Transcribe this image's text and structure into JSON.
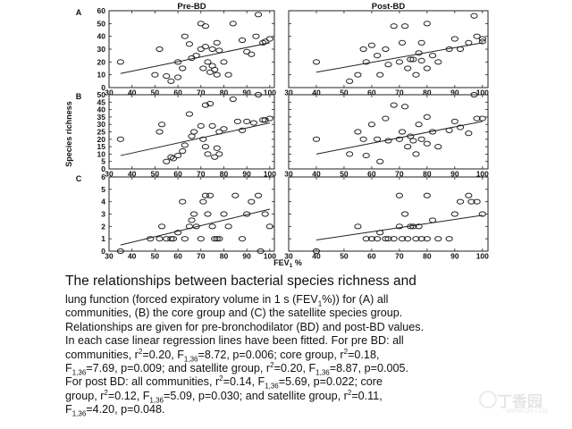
{
  "chart_data": {
    "type": "scatter",
    "columns": [
      "Pre-BD",
      "Post-BD"
    ],
    "ylabel": "Species richness",
    "xlabel_parts": [
      "FEV",
      "1",
      " %"
    ],
    "x_ticks": [
      30,
      40,
      50,
      60,
      70,
      80,
      90,
      100
    ],
    "xlim": [
      30,
      102
    ],
    "rows": [
      {
        "label": "A",
        "ylim": [
          0,
          60
        ],
        "y_ticks": [
          0,
          10,
          20,
          30,
          40,
          50,
          60
        ],
        "panels": [
          {
            "column": "Pre-BD",
            "line": [
              [
                35,
                11
              ],
              [
                100,
                35
              ]
            ],
            "points": [
              [
                35,
                20
              ],
              [
                50,
                10
              ],
              [
                52,
                30
              ],
              [
                55,
                9
              ],
              [
                57,
                5
              ],
              [
                60,
                8
              ],
              [
                60,
                20
              ],
              [
                62,
                15
              ],
              [
                63,
                40
              ],
              [
                65,
                34
              ],
              [
                66,
                23
              ],
              [
                68,
                25
              ],
              [
                70,
                30
              ],
              [
                70,
                50
              ],
              [
                71,
                15
              ],
              [
                72,
                48
              ],
              [
                72,
                32
              ],
              [
                73,
                20
              ],
              [
                74,
                12
              ],
              [
                75,
                30
              ],
              [
                75,
                17
              ],
              [
                76,
                14
              ],
              [
                77,
                10
              ],
              [
                77,
                35
              ],
              [
                78,
                29
              ],
              [
                80,
                20
              ],
              [
                82,
                10
              ],
              [
                84,
                50
              ],
              [
                88,
                37
              ],
              [
                90,
                28
              ],
              [
                92,
                26
              ],
              [
                94,
                40
              ],
              [
                95,
                57
              ],
              [
                97,
                35
              ],
              [
                98,
                36
              ],
              [
                100,
                38
              ]
            ]
          },
          {
            "column": "Post-BD",
            "line": [
              [
                40,
                12
              ],
              [
                100,
                35
              ]
            ],
            "points": [
              [
                40,
                20
              ],
              [
                52,
                5
              ],
              [
                55,
                10
              ],
              [
                57,
                30
              ],
              [
                58,
                20
              ],
              [
                60,
                33
              ],
              [
                62,
                25
              ],
              [
                63,
                10
              ],
              [
                65,
                30
              ],
              [
                66,
                18
              ],
              [
                68,
                48
              ],
              [
                70,
                20
              ],
              [
                71,
                35
              ],
              [
                72,
                48
              ],
              [
                73,
                15
              ],
              [
                74,
                22
              ],
              [
                75,
                22
              ],
              [
                76,
                10
              ],
              [
                77,
                27
              ],
              [
                78,
                21
              ],
              [
                78,
                35
              ],
              [
                80,
                50
              ],
              [
                80,
                15
              ],
              [
                82,
                25
              ],
              [
                84,
                20
              ],
              [
                88,
                30
              ],
              [
                90,
                38
              ],
              [
                92,
                30
              ],
              [
                95,
                35
              ],
              [
                97,
                56
              ],
              [
                98,
                40
              ],
              [
                100,
                38
              ],
              [
                100,
                36
              ]
            ]
          }
        ]
      },
      {
        "label": "B",
        "ylim": [
          0,
          50
        ],
        "y_ticks": [
          0,
          5,
          10,
          15,
          20,
          25,
          30,
          35,
          40,
          45,
          50
        ],
        "panels": [
          {
            "column": "Pre-BD",
            "line": [
              [
                35,
                9
              ],
              [
                100,
                31
              ]
            ],
            "points": [
              [
                35,
                20
              ],
              [
                52,
                25
              ],
              [
                53,
                30
              ],
              [
                55,
                5
              ],
              [
                57,
                8
              ],
              [
                58,
                7
              ],
              [
                60,
                9
              ],
              [
                62,
                12
              ],
              [
                63,
                16
              ],
              [
                65,
                37
              ],
              [
                66,
                22
              ],
              [
                67,
                25
              ],
              [
                70,
                29
              ],
              [
                71,
                20
              ],
              [
                72,
                43
              ],
              [
                72,
                15
              ],
              [
                73,
                10
              ],
              [
                74,
                44
              ],
              [
                75,
                29
              ],
              [
                76,
                8
              ],
              [
                77,
                14
              ],
              [
                78,
                25
              ],
              [
                78,
                10
              ],
              [
                80,
                27
              ],
              [
                84,
                47
              ],
              [
                86,
                32
              ],
              [
                88,
                26
              ],
              [
                90,
                32
              ],
              [
                93,
                31
              ],
              [
                95,
                50
              ],
              [
                97,
                33
              ],
              [
                98,
                33
              ],
              [
                100,
                34
              ]
            ]
          },
          {
            "column": "Post-BD",
            "line": [
              [
                40,
                10
              ],
              [
                100,
                32
              ]
            ],
            "points": [
              [
                40,
                20
              ],
              [
                52,
                10
              ],
              [
                55,
                25
              ],
              [
                57,
                20
              ],
              [
                58,
                9
              ],
              [
                60,
                30
              ],
              [
                62,
                20
              ],
              [
                63,
                5
              ],
              [
                65,
                34
              ],
              [
                66,
                19
              ],
              [
                68,
                43
              ],
              [
                70,
                20
              ],
              [
                71,
                25
              ],
              [
                72,
                42
              ],
              [
                73,
                15
              ],
              [
                74,
                22
              ],
              [
                75,
                19
              ],
              [
                76,
                10
              ],
              [
                77,
                30
              ],
              [
                78,
                20
              ],
              [
                80,
                35
              ],
              [
                80,
                17
              ],
              [
                82,
                25
              ],
              [
                84,
                15
              ],
              [
                88,
                26
              ],
              [
                90,
                32
              ],
              [
                92,
                28
              ],
              [
                95,
                24
              ],
              [
                97,
                50
              ],
              [
                98,
                34
              ],
              [
                100,
                34
              ]
            ]
          }
        ]
      },
      {
        "label": "C",
        "ylim": [
          0,
          6
        ],
        "y_ticks": [
          0,
          1,
          2,
          3,
          4,
          5,
          6
        ],
        "panels": [
          {
            "column": "Pre-BD",
            "line": [
              [
                35,
                0.5
              ],
              [
                100,
                3.4
              ]
            ],
            "points": [
              [
                35,
                0
              ],
              [
                48,
                1
              ],
              [
                52,
                1
              ],
              [
                53,
                2
              ],
              [
                55,
                1
              ],
              [
                57,
                1
              ],
              [
                58,
                1
              ],
              [
                60,
                1.5
              ],
              [
                62,
                4
              ],
              [
                63,
                1
              ],
              [
                65,
                2
              ],
              [
                66,
                2.5
              ],
              [
                67,
                3
              ],
              [
                68,
                2
              ],
              [
                70,
                1
              ],
              [
                71,
                4
              ],
              [
                72,
                4.5
              ],
              [
                73,
                3
              ],
              [
                74,
                4.5
              ],
              [
                75,
                2
              ],
              [
                76,
                1
              ],
              [
                77,
                1
              ],
              [
                78,
                1
              ],
              [
                80,
                3
              ],
              [
                82,
                2
              ],
              [
                85,
                4.5
              ],
              [
                88,
                1
              ],
              [
                90,
                3
              ],
              [
                92,
                4
              ],
              [
                95,
                4.5
              ],
              [
                96,
                0
              ],
              [
                98,
                3
              ],
              [
                100,
                2
              ]
            ]
          },
          {
            "column": "Post-BD",
            "line": [
              [
                40,
                0.9
              ],
              [
                100,
                2.9
              ]
            ],
            "points": [
              [
                40,
                0
              ],
              [
                55,
                2
              ],
              [
                58,
                1
              ],
              [
                60,
                1
              ],
              [
                62,
                1
              ],
              [
                63,
                1.5
              ],
              [
                65,
                1
              ],
              [
                66,
                1
              ],
              [
                68,
                1
              ],
              [
                70,
                4.5
              ],
              [
                70,
                2
              ],
              [
                71,
                1
              ],
              [
                72,
                3
              ],
              [
                73,
                1
              ],
              [
                74,
                2
              ],
              [
                75,
                2
              ],
              [
                76,
                1
              ],
              [
                77,
                2
              ],
              [
                78,
                1
              ],
              [
                80,
                4.5
              ],
              [
                80,
                1
              ],
              [
                82,
                2.5
              ],
              [
                84,
                1
              ],
              [
                88,
                1
              ],
              [
                90,
                3
              ],
              [
                92,
                4
              ],
              [
                95,
                4.5
              ],
              [
                96,
                4
              ],
              [
                98,
                4
              ],
              [
                100,
                3
              ]
            ]
          }
        ]
      }
    ]
  },
  "caption": {
    "title": "The relationships between bacterial species richness and",
    "lines": [
      [
        {
          "t": "lung function (forced expiratory volume in 1 s (FEV"
        },
        {
          "sub": "1"
        },
        {
          "t": "%)) for (A) all"
        }
      ],
      [
        {
          "t": "communities, (B) the core group and (C) the satellite species group."
        }
      ],
      [
        {
          "t": "Relationships are given for pre-bronchodilator (BD) and post-BD values."
        }
      ],
      [
        {
          "t": "In each case linear regression lines have been fitted. For pre BD: all"
        }
      ],
      [
        {
          "t": "communities, r"
        },
        {
          "sup": "2"
        },
        {
          "t": "=0.20, F"
        },
        {
          "sub": "1,36"
        },
        {
          "t": "=8.72, p=0.006; core group, r"
        },
        {
          "sup": "2"
        },
        {
          "t": "=0.18,"
        }
      ],
      [
        {
          "t": "F"
        },
        {
          "sub": "1,36"
        },
        {
          "t": "=7.69, p=0.009; and satellite group, r"
        },
        {
          "sup": "2"
        },
        {
          "t": "=0.20, F"
        },
        {
          "sub": "1,36"
        },
        {
          "t": "=8.87, p=0.005."
        }
      ],
      [
        {
          "t": "For post BD: all communities, r"
        },
        {
          "sup": "2"
        },
        {
          "t": "=0.14, F"
        },
        {
          "sub": "1,36"
        },
        {
          "t": "=5.69, p=0.022; core"
        }
      ],
      [
        {
          "t": "group, r"
        },
        {
          "sup": "2"
        },
        {
          "t": "=0.12, F"
        },
        {
          "sub": "1,36"
        },
        {
          "t": "=5.09, p=0.030; and satellite group, r"
        },
        {
          "sup": "2"
        },
        {
          "t": "=0.11,"
        }
      ],
      [
        {
          "t": "F"
        },
        {
          "sub": "1,36"
        },
        {
          "t": "=4.20, p=0.048."
        }
      ]
    ]
  },
  "watermark": {
    "text": "丁香园",
    "url": "WWW.DXY.CN"
  }
}
